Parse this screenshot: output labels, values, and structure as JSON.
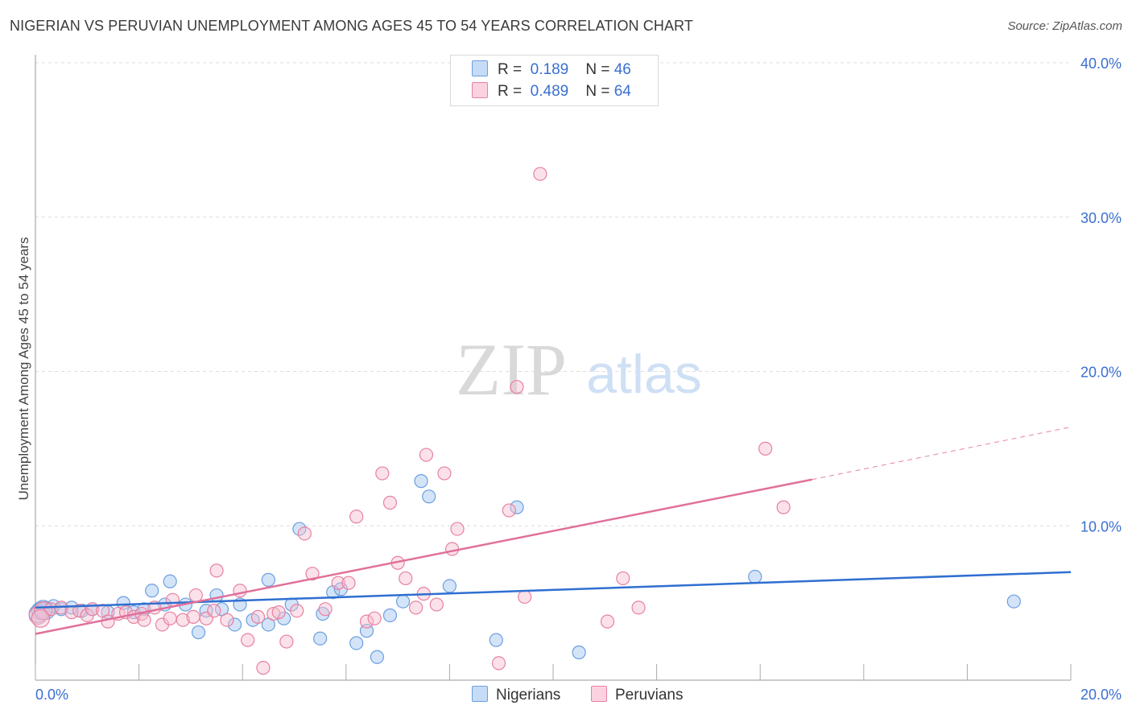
{
  "header": {
    "title": "NIGERIAN VS PERUVIAN UNEMPLOYMENT AMONG AGES 45 TO 54 YEARS CORRELATION CHART",
    "source": "Source: ZipAtlas.com"
  },
  "watermark": {
    "zip": "ZIP",
    "atlas": "atlas"
  },
  "legend": {
    "rows": [
      {
        "r_label": "R =",
        "r_value": "0.189",
        "n_label": "N =",
        "n_value": "46",
        "color": "#a9c8f0",
        "border": "#6a9fe0"
      },
      {
        "r_label": "R =",
        "r_value": "0.489",
        "n_label": "N =",
        "n_value": "64",
        "color": "#f7bfd0",
        "border": "#e8809f"
      }
    ]
  },
  "bottom_legend": {
    "nigerians": "Nigerians",
    "peruvians": "Peruvians"
  },
  "chart_data": {
    "type": "scatter",
    "ylabel": "Unemployment Among Ages 45 to 54 years",
    "xlim": [
      0,
      20
    ],
    "ylim": [
      0,
      40
    ],
    "x_tick_labels": [
      "0.0%",
      "20.0%"
    ],
    "y_tick_labels": [
      "10.0%",
      "20.0%",
      "30.0%",
      "40.0%"
    ],
    "y_ticks": [
      10,
      20,
      30,
      40
    ],
    "grid": "horizontal dashed",
    "series": [
      {
        "name": "Nigerians",
        "color": "#6a9fe0",
        "fill": "rgba(160,195,240,0.45)",
        "trend": {
          "x": [
            0,
            20
          ],
          "y": [
            4.7,
            7.0
          ]
        },
        "points": [
          [
            0.1,
            4.5
          ],
          [
            0.2,
            4.5
          ],
          [
            0.35,
            4.8
          ],
          [
            0.5,
            4.6
          ],
          [
            0.7,
            4.7
          ],
          [
            0.9,
            4.5
          ],
          [
            1.1,
            4.6
          ],
          [
            1.4,
            4.4
          ],
          [
            1.7,
            5.0
          ],
          [
            1.9,
            4.4
          ],
          [
            2.1,
            4.6
          ],
          [
            2.25,
            5.8
          ],
          [
            2.5,
            4.9
          ],
          [
            2.6,
            6.4
          ],
          [
            2.9,
            4.9
          ],
          [
            3.15,
            3.1
          ],
          [
            3.3,
            4.5
          ],
          [
            3.5,
            5.5
          ],
          [
            3.6,
            4.6
          ],
          [
            3.85,
            3.6
          ],
          [
            3.95,
            4.9
          ],
          [
            4.2,
            3.9
          ],
          [
            4.5,
            3.6
          ],
          [
            4.5,
            6.5
          ],
          [
            4.8,
            4.0
          ],
          [
            4.95,
            4.9
          ],
          [
            5.1,
            9.8
          ],
          [
            5.5,
            2.7
          ],
          [
            5.55,
            4.3
          ],
          [
            5.75,
            5.7
          ],
          [
            5.9,
            5.9
          ],
          [
            6.2,
            2.4
          ],
          [
            6.4,
            3.2
          ],
          [
            6.6,
            1.5
          ],
          [
            6.85,
            4.2
          ],
          [
            7.1,
            5.1
          ],
          [
            7.45,
            12.9
          ],
          [
            7.6,
            11.9
          ],
          [
            8.0,
            6.1
          ],
          [
            8.9,
            2.6
          ],
          [
            9.3,
            11.2
          ],
          [
            10.5,
            1.8
          ],
          [
            13.9,
            6.7
          ],
          [
            18.9,
            5.1
          ],
          [
            0.05,
            4.3
          ],
          [
            0.15,
            4.6
          ]
        ]
      },
      {
        "name": "Peruvians",
        "color": "#e8809f",
        "fill": "rgba(247,190,208,0.45)",
        "trend": {
          "x": [
            0,
            15
          ],
          "y": [
            3.0,
            13.0
          ]
        },
        "trend_dashed": {
          "x": [
            15,
            20
          ],
          "y": [
            13.0,
            16.4
          ]
        },
        "points": [
          [
            0.05,
            4.2
          ],
          [
            0.15,
            4.5
          ],
          [
            0.3,
            4.6
          ],
          [
            0.5,
            4.7
          ],
          [
            0.7,
            4.4
          ],
          [
            0.85,
            4.5
          ],
          [
            1.0,
            4.2
          ],
          [
            1.1,
            4.6
          ],
          [
            1.3,
            4.5
          ],
          [
            1.4,
            3.8
          ],
          [
            1.6,
            4.3
          ],
          [
            1.75,
            4.4
          ],
          [
            1.9,
            4.1
          ],
          [
            2.05,
            4.3
          ],
          [
            2.1,
            3.9
          ],
          [
            2.3,
            4.7
          ],
          [
            2.45,
            3.6
          ],
          [
            2.6,
            4.0
          ],
          [
            2.65,
            5.2
          ],
          [
            2.85,
            3.9
          ],
          [
            3.05,
            4.1
          ],
          [
            3.1,
            5.5
          ],
          [
            3.3,
            4.0
          ],
          [
            3.45,
            4.5
          ],
          [
            3.5,
            7.1
          ],
          [
            3.7,
            3.9
          ],
          [
            3.95,
            5.8
          ],
          [
            4.1,
            2.6
          ],
          [
            4.3,
            4.1
          ],
          [
            4.4,
            0.8
          ],
          [
            4.6,
            4.3
          ],
          [
            4.7,
            4.4
          ],
          [
            4.85,
            2.5
          ],
          [
            5.05,
            4.5
          ],
          [
            5.2,
            9.5
          ],
          [
            5.35,
            6.9
          ],
          [
            5.6,
            4.6
          ],
          [
            5.85,
            6.3
          ],
          [
            6.05,
            6.3
          ],
          [
            6.2,
            10.6
          ],
          [
            6.4,
            3.8
          ],
          [
            6.55,
            4.0
          ],
          [
            6.7,
            13.4
          ],
          [
            6.85,
            11.5
          ],
          [
            7.0,
            7.6
          ],
          [
            7.15,
            6.6
          ],
          [
            7.35,
            4.7
          ],
          [
            7.5,
            5.6
          ],
          [
            7.55,
            14.6
          ],
          [
            7.75,
            4.9
          ],
          [
            7.9,
            13.4
          ],
          [
            8.05,
            8.5
          ],
          [
            8.15,
            9.8
          ],
          [
            8.95,
            1.1
          ],
          [
            9.15,
            11.0
          ],
          [
            9.3,
            19.0
          ],
          [
            9.45,
            5.4
          ],
          [
            9.75,
            32.8
          ],
          [
            11.05,
            3.8
          ],
          [
            11.35,
            6.6
          ],
          [
            11.65,
            4.7
          ],
          [
            14.1,
            15.0
          ],
          [
            14.45,
            11.2
          ],
          [
            0.1,
            4.0
          ]
        ]
      }
    ]
  }
}
